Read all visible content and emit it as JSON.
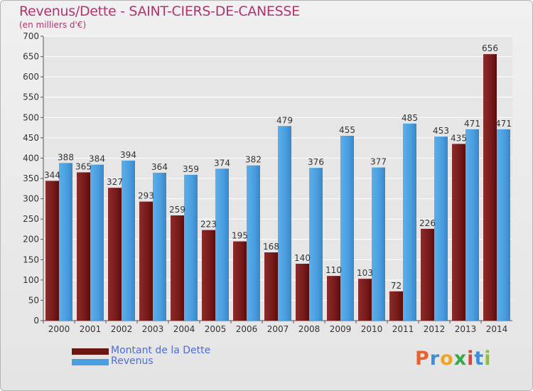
{
  "header": {
    "title": "Revenus/Dette - SAINT-CIERS-DE-CANESSE",
    "subtitle": "(en milliers d'€)"
  },
  "chart_data": {
    "type": "bar",
    "categories": [
      "2000",
      "2001",
      "2002",
      "2003",
      "2004",
      "2005",
      "2006",
      "2007",
      "2008",
      "2009",
      "2010",
      "2011",
      "2012",
      "2013",
      "2014"
    ],
    "series": [
      {
        "name": "Montant de la Dette",
        "color": "#7a1c1c",
        "values": [
          344,
          365,
          327,
          293,
          259,
          223,
          195,
          168,
          140,
          110,
          103,
          72,
          226,
          435,
          656
        ]
      },
      {
        "name": "Revenus",
        "color": "#4a9fe0",
        "values": [
          388,
          384,
          394,
          364,
          359,
          374,
          382,
          479,
          376,
          455,
          377,
          485,
          453,
          471,
          471
        ]
      }
    ],
    "ylim": [
      0,
      700
    ],
    "yticks": [
      0,
      50,
      100,
      150,
      200,
      250,
      300,
      350,
      400,
      450,
      500,
      550,
      600,
      650,
      700
    ],
    "grid": true,
    "legend_position": "bottom-left"
  },
  "legend": {
    "items": [
      {
        "label": "Montant de la Dette",
        "color": "#6b1515"
      },
      {
        "label": "Revenus",
        "color": "#4a9fe0"
      }
    ]
  },
  "logo": {
    "letters": [
      "P",
      "r",
      "o",
      "x",
      "i",
      "t",
      "i"
    ],
    "colors": [
      "#e8612c",
      "#3a8fd6",
      "#f0a522",
      "#3aa64a",
      "#d6453a",
      "#3a8fd6",
      "#8bbf3a"
    ]
  }
}
